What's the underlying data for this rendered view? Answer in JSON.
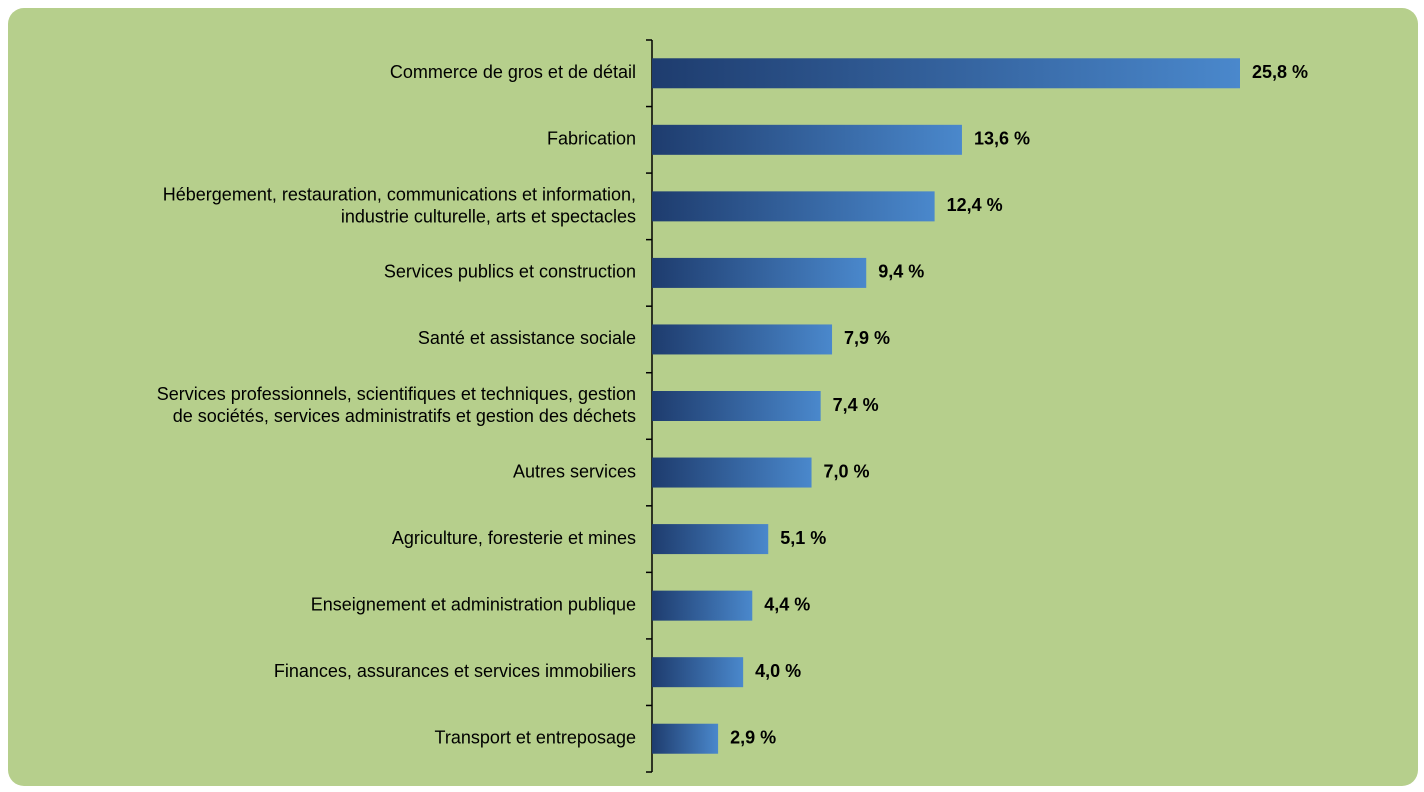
{
  "chart_data": {
    "type": "barh",
    "categories": [
      "Commerce de gros et de détail",
      "Fabrication",
      "Hébergement, restauration, communications et information,\nindustrie culturelle, arts et spectacles",
      "Services publics et construction",
      "Santé et assistance sociale",
      "Services professionnels, scientifiques et techniques, gestion\nde sociétés, services administratifs et gestion des déchets",
      "Autres services",
      "Agriculture, foresterie et mines",
      "Enseignement et administration publique",
      "Finances, assurances et services immobiliers",
      "Transport et entreposage"
    ],
    "values": [
      25.8,
      13.6,
      12.4,
      9.4,
      7.9,
      7.4,
      7.0,
      5.1,
      4.4,
      4.0,
      2.9
    ],
    "value_labels": [
      "25,8 %",
      "13,6 %",
      "12,4 %",
      "9,4 %",
      "7,9 %",
      "7,4 %",
      "7,0 %",
      "5,1 %",
      "4,4 %",
      "4,0 %",
      "2,9 %"
    ],
    "color": [
      "#1e3c6e",
      "#4a88cc"
    ],
    "background": "#b6cf8c"
  }
}
